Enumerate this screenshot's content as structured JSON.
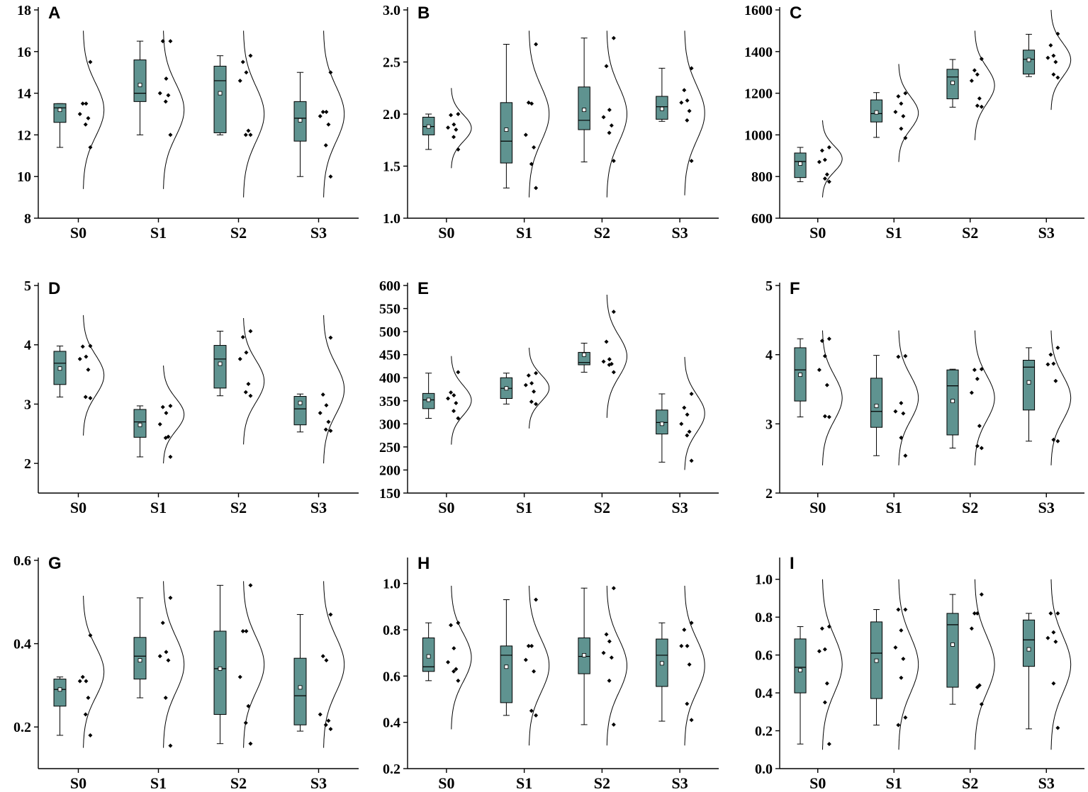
{
  "colors": {
    "box_fill": "#5f9390",
    "stroke": "#000000",
    "background": "#ffffff"
  },
  "categories": [
    "S0",
    "S1",
    "S2",
    "S3"
  ],
  "chart_data": [
    {
      "type": "box",
      "letter": "A",
      "ylim": [
        8,
        18
      ],
      "yticks": [
        8,
        10,
        12,
        14,
        16,
        18
      ],
      "ytick_labels": [
        "8",
        "10",
        "12",
        "14",
        "16",
        "18"
      ],
      "categories": [
        "S0",
        "S1",
        "S2",
        "S3"
      ],
      "series": [
        {
          "name": "S0",
          "whisker_low": 11.4,
          "q1": 12.6,
          "median": 13.3,
          "q3": 13.5,
          "whisker_high": 13.5,
          "mean": 13.2,
          "points": [
            15.5,
            13.5,
            13.5,
            13.0,
            12.8,
            12.5,
            11.4
          ],
          "curve": [
            9.4,
            17.0
          ]
        },
        {
          "name": "S1",
          "whisker_low": 12.0,
          "q1": 13.6,
          "median": 14.0,
          "q3": 15.6,
          "whisker_high": 16.5,
          "mean": 14.4,
          "points": [
            16.5,
            16.5,
            14.7,
            14.0,
            13.9,
            13.6,
            12.0
          ],
          "curve": [
            9.4,
            17.0
          ]
        },
        {
          "name": "S2",
          "whisker_low": 12.0,
          "q1": 12.1,
          "median": 14.6,
          "q3": 15.3,
          "whisker_high": 15.8,
          "mean": 14.0,
          "points": [
            15.8,
            15.5,
            15.0,
            14.6,
            12.2,
            12.0,
            12.0
          ],
          "curve": [
            9.0,
            17.0
          ]
        },
        {
          "name": "S3",
          "whisker_low": 10.0,
          "q1": 11.7,
          "median": 12.8,
          "q3": 13.6,
          "whisker_high": 15.0,
          "mean": 12.7,
          "points": [
            15.0,
            13.1,
            13.1,
            12.9,
            12.5,
            11.5,
            10.0
          ],
          "curve": [
            9.0,
            17.0
          ]
        }
      ]
    },
    {
      "type": "box",
      "letter": "B",
      "ylim": [
        1.0,
        3.0
      ],
      "yticks": [
        1.0,
        1.5,
        2.0,
        2.5,
        3.0
      ],
      "ytick_labels": [
        "1.0",
        "1.5",
        "2.0",
        "2.5",
        "3.0"
      ],
      "categories": [
        "S0",
        "S1",
        "S2",
        "S3"
      ],
      "series": [
        {
          "name": "S0",
          "whisker_low": 1.66,
          "q1": 1.8,
          "median": 1.88,
          "q3": 1.97,
          "whisker_high": 2.0,
          "mean": 1.88,
          "points": [
            2.0,
            1.99,
            1.9,
            1.87,
            1.85,
            1.78,
            1.66
          ],
          "curve": [
            1.48,
            2.25
          ]
        },
        {
          "name": "S1",
          "whisker_low": 1.29,
          "q1": 1.53,
          "median": 1.74,
          "q3": 2.11,
          "whisker_high": 2.67,
          "mean": 1.85,
          "points": [
            2.67,
            2.11,
            2.1,
            1.8,
            1.68,
            1.52,
            1.29
          ],
          "curve": [
            1.2,
            2.8
          ]
        },
        {
          "name": "S2",
          "whisker_low": 1.54,
          "q1": 1.85,
          "median": 1.94,
          "q3": 2.26,
          "whisker_high": 2.73,
          "mean": 2.04,
          "points": [
            2.73,
            2.46,
            2.04,
            1.97,
            1.89,
            1.82,
            1.55
          ],
          "curve": [
            1.2,
            2.8
          ]
        },
        {
          "name": "S3",
          "whisker_low": 1.93,
          "q1": 1.95,
          "median": 2.07,
          "q3": 2.17,
          "whisker_high": 2.44,
          "mean": 2.05,
          "points": [
            2.44,
            2.23,
            2.13,
            2.11,
            2.03,
            1.94,
            1.55
          ],
          "curve": [
            1.22,
            2.8
          ]
        }
      ]
    },
    {
      "type": "box",
      "letter": "C",
      "ylim": [
        600,
        1600
      ],
      "yticks": [
        600,
        800,
        1000,
        1200,
        1400,
        1600
      ],
      "ytick_labels": [
        "600",
        "800",
        "1000",
        "1200",
        "1400",
        "1600"
      ],
      "categories": [
        "S0",
        "S1",
        "S2",
        "S3"
      ],
      "series": [
        {
          "name": "S0",
          "whisker_low": 775,
          "q1": 795,
          "median": 872,
          "q3": 913,
          "whisker_high": 940,
          "mean": 862,
          "points": [
            940,
            925,
            880,
            870,
            810,
            790,
            775
          ],
          "curve": [
            700,
            1070
          ]
        },
        {
          "name": "S1",
          "whisker_low": 988,
          "q1": 1062,
          "median": 1102,
          "q3": 1168,
          "whisker_high": 1203,
          "mean": 1108,
          "points": [
            1200,
            1185,
            1150,
            1110,
            1090,
            1030,
            985
          ],
          "curve": [
            870,
            1340
          ]
        },
        {
          "name": "S2",
          "whisker_low": 1133,
          "q1": 1173,
          "median": 1278,
          "q3": 1315,
          "whisker_high": 1362,
          "mean": 1250,
          "points": [
            1365,
            1310,
            1290,
            1260,
            1175,
            1140,
            1135
          ],
          "curve": [
            975,
            1500
          ]
        },
        {
          "name": "S3",
          "whisker_low": 1280,
          "q1": 1292,
          "median": 1363,
          "q3": 1407,
          "whisker_high": 1483,
          "mean": 1360,
          "points": [
            1485,
            1430,
            1380,
            1370,
            1350,
            1290,
            1275
          ],
          "curve": [
            1120,
            1600
          ]
        }
      ]
    },
    {
      "type": "box",
      "letter": "D",
      "ylim": [
        1.5,
        5
      ],
      "yticks": [
        2,
        3,
        4,
        5
      ],
      "ytick_labels": [
        "2",
        "3",
        "4",
        "5"
      ],
      "categories": [
        "S0",
        "S1",
        "S2",
        "S3"
      ],
      "series": [
        {
          "name": "S0",
          "whisker_low": 3.12,
          "q1": 3.33,
          "median": 3.69,
          "q3": 3.89,
          "whisker_high": 3.98,
          "mean": 3.6,
          "points": [
            3.98,
            3.97,
            3.8,
            3.76,
            3.58,
            3.12,
            3.1
          ],
          "curve": [
            2.47,
            4.5
          ]
        },
        {
          "name": "S1",
          "whisker_low": 2.11,
          "q1": 2.44,
          "median": 2.7,
          "q3": 2.91,
          "whisker_high": 2.97,
          "mean": 2.65,
          "points": [
            2.97,
            2.95,
            2.85,
            2.66,
            2.45,
            2.43,
            2.11
          ],
          "curve": [
            2.0,
            3.65
          ]
        },
        {
          "name": "S2",
          "whisker_low": 3.14,
          "q1": 3.27,
          "median": 3.76,
          "q3": 3.99,
          "whisker_high": 4.23,
          "mean": 3.68,
          "points": [
            4.23,
            4.13,
            3.87,
            3.76,
            3.34,
            3.2,
            3.14
          ],
          "curve": [
            2.32,
            4.45
          ]
        },
        {
          "name": "S3",
          "whisker_low": 2.53,
          "q1": 2.65,
          "median": 2.92,
          "q3": 3.13,
          "whisker_high": 3.17,
          "mean": 3.02,
          "points": [
            4.12,
            3.16,
            2.98,
            2.85,
            2.7,
            2.57,
            2.55
          ],
          "curve": [
            2.0,
            4.5
          ]
        }
      ]
    },
    {
      "type": "box",
      "letter": "E",
      "ylim": [
        150,
        600
      ],
      "yticks": [
        150,
        200,
        250,
        300,
        350,
        400,
        450,
        500,
        550,
        600
      ],
      "ytick_labels": [
        "150",
        "200",
        "250",
        "300",
        "350",
        "400",
        "450",
        "500",
        "550",
        "600"
      ],
      "categories": [
        "S0",
        "S1",
        "S2",
        "S3"
      ],
      "series": [
        {
          "name": "S0",
          "whisker_low": 312,
          "q1": 333,
          "median": 352,
          "q3": 366,
          "whisker_high": 410,
          "mean": 352,
          "points": [
            412,
            368,
            362,
            355,
            345,
            328,
            312
          ],
          "curve": [
            255,
            447
          ]
        },
        {
          "name": "S1",
          "whisker_low": 343,
          "q1": 355,
          "median": 377,
          "q3": 400,
          "whisker_high": 410,
          "mean": 377,
          "points": [
            410,
            405,
            388,
            384,
            370,
            348,
            343
          ],
          "curve": [
            290,
            465
          ]
        },
        {
          "name": "S2",
          "whisker_low": 412,
          "q1": 428,
          "median": 433,
          "q3": 455,
          "whisker_high": 475,
          "mean": 450,
          "points": [
            543,
            478,
            440,
            435,
            430,
            428,
            412
          ],
          "curve": [
            313,
            580
          ]
        },
        {
          "name": "S3",
          "whisker_low": 217,
          "q1": 278,
          "median": 303,
          "q3": 330,
          "whisker_high": 365,
          "mean": 300,
          "points": [
            365,
            335,
            320,
            300,
            283,
            275,
            220
          ],
          "curve": [
            200,
            445
          ]
        }
      ]
    },
    {
      "type": "box",
      "letter": "F",
      "ylim": [
        2,
        5
      ],
      "yticks": [
        2,
        3,
        4,
        5
      ],
      "ytick_labels": [
        "2",
        "3",
        "4",
        "5"
      ],
      "categories": [
        "S0",
        "S1",
        "S2",
        "S3"
      ],
      "series": [
        {
          "name": "S0",
          "whisker_low": 3.1,
          "q1": 3.33,
          "median": 3.78,
          "q3": 4.1,
          "whisker_high": 4.23,
          "mean": 3.71,
          "points": [
            4.23,
            4.2,
            3.98,
            3.78,
            3.56,
            3.11,
            3.1
          ],
          "curve": [
            2.4,
            4.35
          ]
        },
        {
          "name": "S1",
          "whisker_low": 2.54,
          "q1": 2.95,
          "median": 3.18,
          "q3": 3.66,
          "whisker_high": 3.99,
          "mean": 3.26,
          "points": [
            3.98,
            3.97,
            3.3,
            3.18,
            3.15,
            2.8,
            2.54
          ],
          "curve": [
            2.4,
            4.35
          ]
        },
        {
          "name": "S2",
          "whisker_low": 2.65,
          "q1": 2.84,
          "median": 3.55,
          "q3": 3.78,
          "whisker_high": 3.79,
          "mean": 3.33,
          "points": [
            3.79,
            3.78,
            3.65,
            3.45,
            2.97,
            2.68,
            2.65
          ],
          "curve": [
            2.4,
            4.35
          ]
        },
        {
          "name": "S3",
          "whisker_low": 2.75,
          "q1": 3.2,
          "median": 3.82,
          "q3": 3.92,
          "whisker_high": 4.1,
          "mean": 3.6,
          "points": [
            4.1,
            4.0,
            3.87,
            3.86,
            3.62,
            2.77,
            2.75
          ],
          "curve": [
            2.4,
            4.35
          ]
        }
      ]
    },
    {
      "type": "box",
      "letter": "G",
      "ylim": [
        0.1,
        0.6
      ],
      "yticks": [
        0.2,
        0.4,
        0.6
      ],
      "ytick_labels": [
        "0.2",
        "0.4",
        "0.6"
      ],
      "categories": [
        "S0",
        "S1",
        "S2",
        "S3"
      ],
      "series": [
        {
          "name": "S0",
          "whisker_low": 0.18,
          "q1": 0.25,
          "median": 0.29,
          "q3": 0.315,
          "whisker_high": 0.32,
          "mean": 0.29,
          "points": [
            0.42,
            0.32,
            0.31,
            0.31,
            0.27,
            0.23,
            0.18
          ],
          "curve": [
            0.15,
            0.515
          ]
        },
        {
          "name": "S1",
          "whisker_low": 0.27,
          "q1": 0.315,
          "median": 0.37,
          "q3": 0.415,
          "whisker_high": 0.51,
          "mean": 0.36,
          "points": [
            0.51,
            0.45,
            0.38,
            0.37,
            0.36,
            0.27,
            0.155
          ],
          "curve": [
            0.15,
            0.55
          ]
        },
        {
          "name": "S2",
          "whisker_low": 0.16,
          "q1": 0.23,
          "median": 0.34,
          "q3": 0.43,
          "whisker_high": 0.54,
          "mean": 0.34,
          "points": [
            0.54,
            0.43,
            0.43,
            0.32,
            0.25,
            0.21,
            0.16
          ],
          "curve": [
            0.15,
            0.55
          ]
        },
        {
          "name": "S3",
          "whisker_low": 0.19,
          "q1": 0.205,
          "median": 0.275,
          "q3": 0.365,
          "whisker_high": 0.47,
          "mean": 0.295,
          "points": [
            0.47,
            0.37,
            0.36,
            0.23,
            0.215,
            0.205,
            0.195
          ],
          "curve": [
            0.15,
            0.55
          ]
        }
      ]
    },
    {
      "type": "box",
      "letter": "H",
      "ylim": [
        0.2,
        1.1
      ],
      "yticks": [
        0.2,
        0.4,
        0.6,
        0.8,
        1.0
      ],
      "ytick_labels": [
        "0.2",
        "0.4",
        "0.6",
        "0.8",
        "1.0"
      ],
      "categories": [
        "S0",
        "S1",
        "S2",
        "S3"
      ],
      "series": [
        {
          "name": "S0",
          "whisker_low": 0.58,
          "q1": 0.62,
          "median": 0.64,
          "q3": 0.765,
          "whisker_high": 0.83,
          "mean": 0.685,
          "points": [
            0.83,
            0.82,
            0.72,
            0.66,
            0.63,
            0.62,
            0.58
          ],
          "curve": [
            0.37,
            0.99
          ]
        },
        {
          "name": "S1",
          "whisker_low": 0.43,
          "q1": 0.485,
          "median": 0.69,
          "q3": 0.73,
          "whisker_high": 0.93,
          "mean": 0.64,
          "points": [
            0.93,
            0.73,
            0.73,
            0.67,
            0.62,
            0.45,
            0.43
          ],
          "curve": [
            0.3,
            0.99
          ]
        },
        {
          "name": "S2",
          "whisker_low": 0.39,
          "q1": 0.61,
          "median": 0.685,
          "q3": 0.765,
          "whisker_high": 0.98,
          "mean": 0.69,
          "points": [
            0.98,
            0.78,
            0.75,
            0.7,
            0.68,
            0.58,
            0.39
          ],
          "curve": [
            0.3,
            0.99
          ]
        },
        {
          "name": "S3",
          "whisker_low": 0.405,
          "q1": 0.555,
          "median": 0.69,
          "q3": 0.76,
          "whisker_high": 0.83,
          "mean": 0.655,
          "points": [
            0.83,
            0.8,
            0.73,
            0.73,
            0.65,
            0.48,
            0.41
          ],
          "curve": [
            0.3,
            0.99
          ]
        }
      ]
    },
    {
      "type": "box",
      "letter": "I",
      "ylim": [
        0.0,
        1.1
      ],
      "yticks": [
        0.0,
        0.2,
        0.4,
        0.6,
        0.8,
        1.0
      ],
      "ytick_labels": [
        "0.0",
        "0.2",
        "0.4",
        "0.6",
        "0.8",
        "1.0"
      ],
      "categories": [
        "S0",
        "S1",
        "S2",
        "S3"
      ],
      "series": [
        {
          "name": "S0",
          "whisker_low": 0.13,
          "q1": 0.4,
          "median": 0.535,
          "q3": 0.685,
          "whisker_high": 0.75,
          "mean": 0.52,
          "points": [
            0.75,
            0.74,
            0.63,
            0.62,
            0.45,
            0.35,
            0.13
          ],
          "curve": [
            0.1,
            1.0
          ]
        },
        {
          "name": "S1",
          "whisker_low": 0.23,
          "q1": 0.37,
          "median": 0.61,
          "q3": 0.775,
          "whisker_high": 0.84,
          "mean": 0.57,
          "points": [
            0.84,
            0.84,
            0.73,
            0.64,
            0.58,
            0.48,
            0.27,
            0.23
          ],
          "curve": [
            0.1,
            1.0
          ]
        },
        {
          "name": "S2",
          "whisker_low": 0.34,
          "q1": 0.43,
          "median": 0.76,
          "q3": 0.82,
          "whisker_high": 0.92,
          "mean": 0.655,
          "points": [
            0.92,
            0.82,
            0.82,
            0.74,
            0.44,
            0.43,
            0.34
          ],
          "curve": [
            0.1,
            1.0
          ]
        },
        {
          "name": "S3",
          "whisker_low": 0.21,
          "q1": 0.54,
          "median": 0.68,
          "q3": 0.785,
          "whisker_high": 0.82,
          "mean": 0.63,
          "points": [
            0.82,
            0.82,
            0.72,
            0.69,
            0.67,
            0.45,
            0.215
          ],
          "curve": [
            0.1,
            1.0
          ]
        }
      ]
    }
  ]
}
